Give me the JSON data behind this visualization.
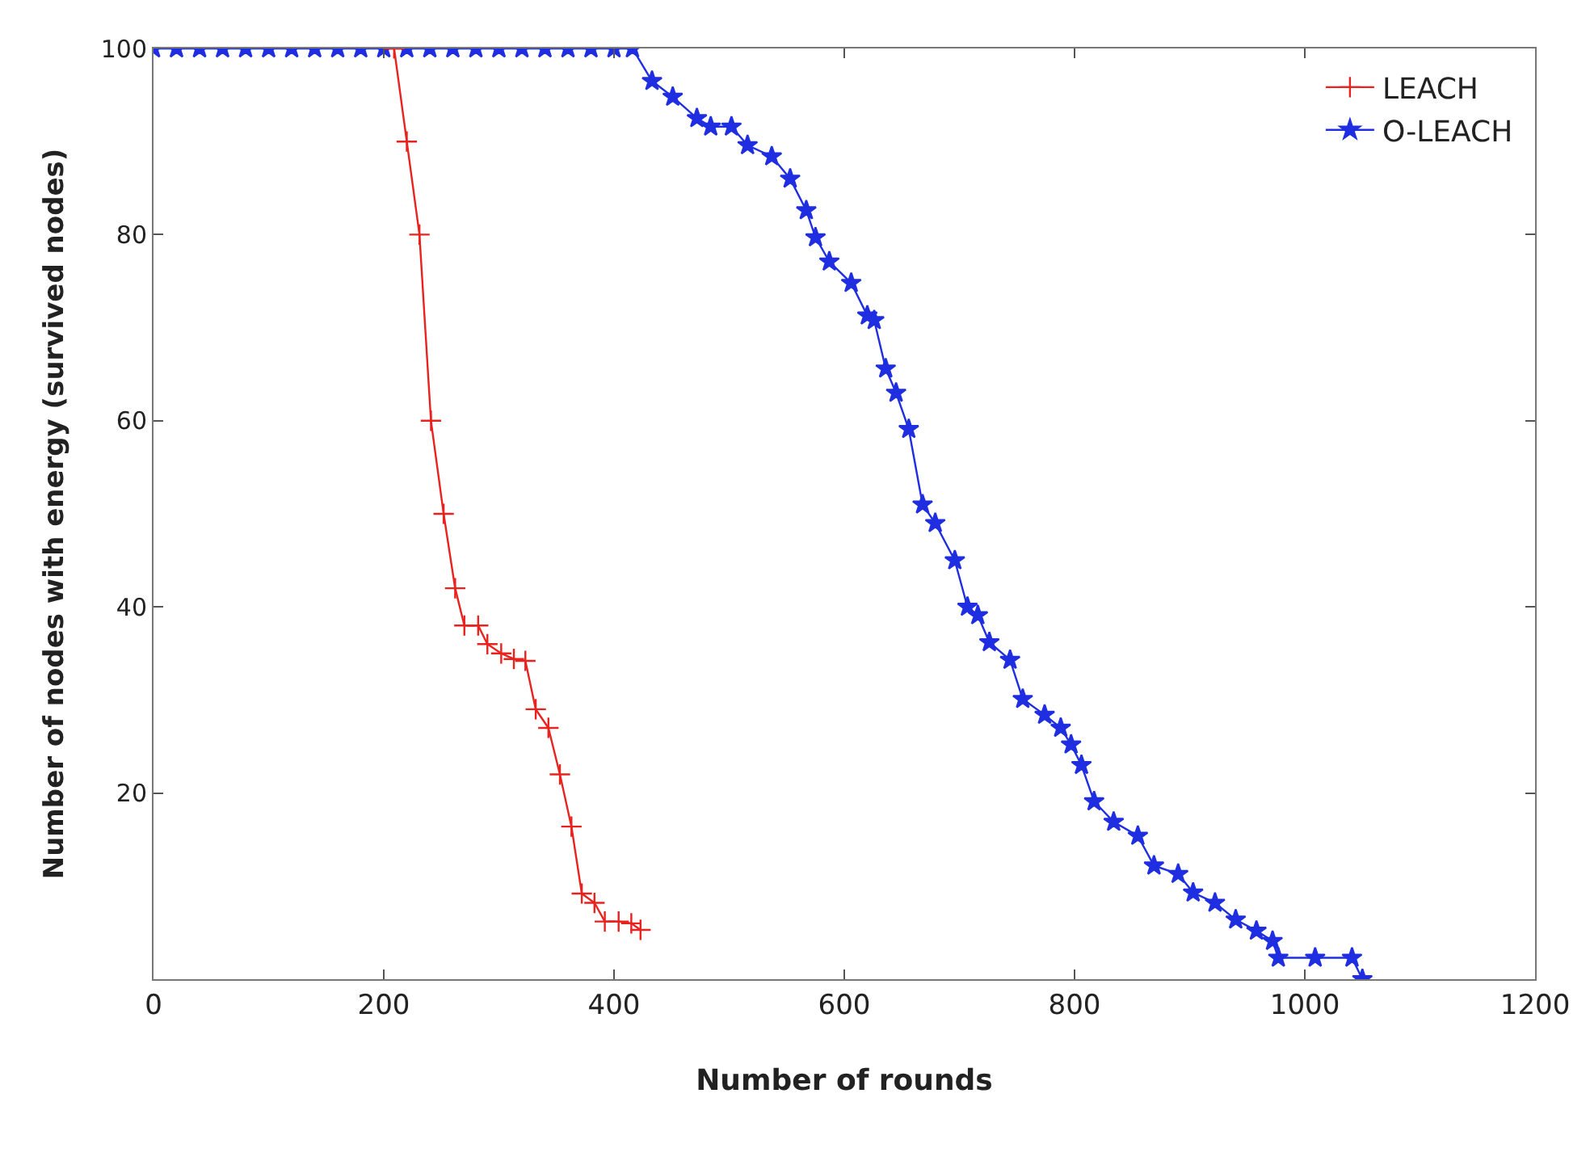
{
  "chart_data": {
    "type": "line",
    "xlabel": "Number of rounds",
    "ylabel": "Number of nodes with energy (survived nodes)",
    "xlim": [
      0,
      1200
    ],
    "xticks": [
      0,
      200,
      400,
      600,
      800,
      1000,
      1200
    ],
    "ylim": [
      0,
      100
    ],
    "yticks": [
      20,
      40,
      60,
      80,
      100
    ],
    "grid": false,
    "legend": "top right",
    "series": [
      {
        "name": "LEACH",
        "color": "#e8231f",
        "marker": "cross",
        "x": [
          209,
          220,
          231,
          241,
          252,
          262,
          270,
          282,
          290,
          302,
          313,
          323,
          332,
          343,
          353,
          363,
          372,
          383,
          392,
          404,
          415,
          423
        ],
        "values": [
          100,
          90,
          80,
          60,
          50,
          42,
          38,
          38,
          36,
          35,
          34.4,
          34.2,
          29,
          27,
          22,
          16.4,
          9.2,
          8.2,
          6.2,
          6.2,
          6,
          5.3
        ]
      },
      {
        "name": "O-LEACH",
        "color": "#1f2ee0",
        "marker": "star",
        "x": [
          0,
          20,
          40,
          60,
          80,
          100,
          120,
          140,
          160,
          180,
          200,
          220,
          240,
          260,
          280,
          300,
          320,
          340,
          360,
          380,
          400,
          416,
          433,
          451,
          472,
          484,
          502,
          516,
          537,
          553,
          567,
          575,
          587,
          606,
          620,
          626,
          636,
          645,
          656,
          668,
          679,
          696,
          707,
          716,
          726,
          744,
          755,
          774,
          788,
          797,
          806,
          817,
          834,
          855,
          869,
          890,
          903,
          922,
          940,
          958,
          972,
          977,
          1009,
          1041,
          1050
        ],
        "values": [
          100,
          100,
          100,
          100,
          100,
          100,
          100,
          100,
          100,
          100,
          100,
          100,
          100,
          100,
          100,
          100,
          100,
          100,
          100,
          100,
          100,
          100,
          96.5,
          94.8,
          92.5,
          91.6,
          91.6,
          89.6,
          88.4,
          86,
          82.6,
          79.7,
          77.1,
          74.8,
          71.3,
          70.8,
          65.6,
          63,
          59.1,
          51,
          49,
          45,
          40,
          39.1,
          36.2,
          34.3,
          30.1,
          28.4,
          27,
          25.2,
          23,
          19.1,
          16.9,
          15.4,
          12.2,
          11.3,
          9.3,
          8.2,
          6.4,
          5.2,
          4.1,
          2.3,
          2.3,
          2.3,
          0
        ]
      }
    ]
  }
}
